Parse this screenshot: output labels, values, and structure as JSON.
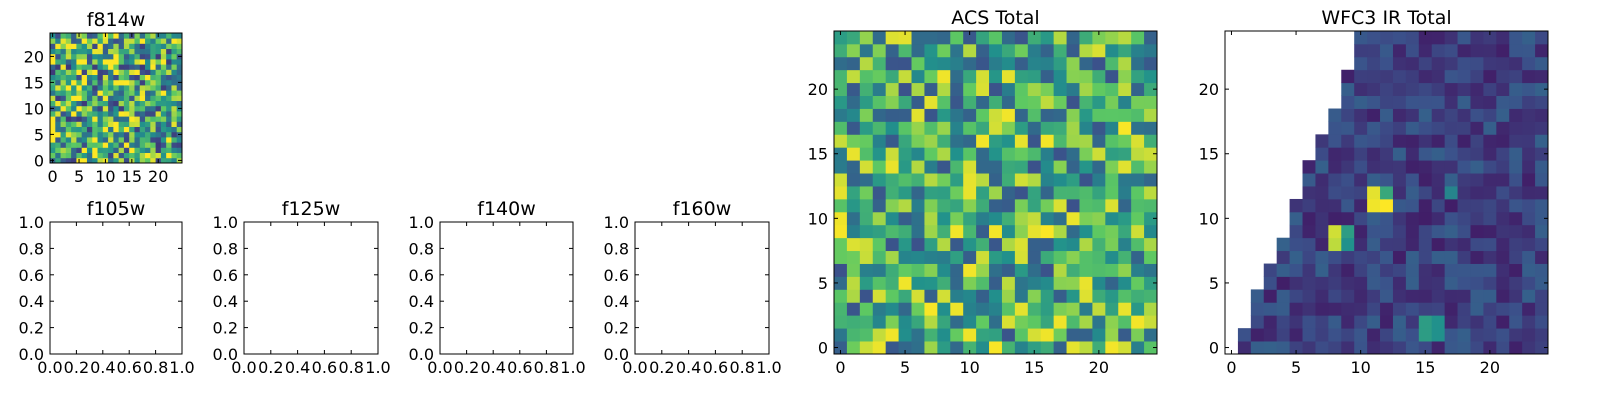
{
  "figure": {
    "background": "#ffffff",
    "colormap": "viridis",
    "colormap_stops": [
      "#440154",
      "#3b528b",
      "#21918c",
      "#5ec962",
      "#fde725"
    ]
  },
  "chart_data": [
    {
      "id": "f814w",
      "type": "heatmap",
      "title": "f814w",
      "xlim": [
        -0.5,
        24.5
      ],
      "ylim": [
        -0.5,
        24.5
      ],
      "xticks": [
        0,
        5,
        10,
        15,
        20
      ],
      "xtick_labels": [
        "0",
        "5",
        "10",
        "15",
        "20"
      ],
      "yticks": [
        0,
        5,
        10,
        15,
        20
      ],
      "ytick_labels": [
        "0",
        "5",
        "10",
        "15",
        "20"
      ],
      "grid": false,
      "nrows": 25,
      "ncols": 25,
      "value_range": [
        0,
        1
      ],
      "mask": "none",
      "seed": 814,
      "base": 0.62,
      "spread": 0.9
    },
    {
      "id": "f105w",
      "type": "empty",
      "title": "f105w",
      "xlim": [
        0,
        1
      ],
      "ylim": [
        0,
        1
      ],
      "xticks": [
        0,
        0.2,
        0.4,
        0.6,
        0.8,
        1.0
      ],
      "xtick_labels": [
        "0.0",
        "0.2",
        "0.4",
        "0.6",
        "0.8",
        "1.0"
      ],
      "yticks": [
        0,
        0.2,
        0.4,
        0.6,
        0.8,
        1.0
      ],
      "ytick_labels": [
        "0.0",
        "0.2",
        "0.4",
        "0.6",
        "0.8",
        "1.0"
      ],
      "grid": false
    },
    {
      "id": "f125w",
      "type": "empty",
      "title": "f125w",
      "xlim": [
        0,
        1
      ],
      "ylim": [
        0,
        1
      ],
      "xticks": [
        0,
        0.2,
        0.4,
        0.6,
        0.8,
        1.0
      ],
      "xtick_labels": [
        "0.0",
        "0.2",
        "0.4",
        "0.6",
        "0.8",
        "1.0"
      ],
      "yticks": [
        0,
        0.2,
        0.4,
        0.6,
        0.8,
        1.0
      ],
      "ytick_labels": [
        "0.0",
        "0.2",
        "0.4",
        "0.6",
        "0.8",
        "1.0"
      ],
      "grid": false
    },
    {
      "id": "f140w",
      "type": "empty",
      "title": "f140w",
      "xlim": [
        0,
        1
      ],
      "ylim": [
        0,
        1
      ],
      "xticks": [
        0,
        0.2,
        0.4,
        0.6,
        0.8,
        1.0
      ],
      "xtick_labels": [
        "0.0",
        "0.2",
        "0.4",
        "0.6",
        "0.8",
        "1.0"
      ],
      "yticks": [
        0,
        0.2,
        0.4,
        0.6,
        0.8,
        1.0
      ],
      "ytick_labels": [
        "0.0",
        "0.2",
        "0.4",
        "0.6",
        "0.8",
        "1.0"
      ],
      "grid": false
    },
    {
      "id": "f160w",
      "type": "empty",
      "title": "f160w",
      "xlim": [
        0,
        1
      ],
      "ylim": [
        0,
        1
      ],
      "xticks": [
        0,
        0.2,
        0.4,
        0.6,
        0.8,
        1.0
      ],
      "xtick_labels": [
        "0.0",
        "0.2",
        "0.4",
        "0.6",
        "0.8",
        "1.0"
      ],
      "yticks": [
        0,
        0.2,
        0.4,
        0.6,
        0.8,
        1.0
      ],
      "ytick_labels": [
        "0.0",
        "0.2",
        "0.4",
        "0.6",
        "0.8",
        "1.0"
      ],
      "grid": false
    },
    {
      "id": "acs_total",
      "type": "heatmap",
      "title": "ACS Total",
      "xlim": [
        -0.5,
        24.5
      ],
      "ylim": [
        -0.5,
        24.5
      ],
      "xticks": [
        0,
        5,
        10,
        15,
        20
      ],
      "xtick_labels": [
        "0",
        "5",
        "10",
        "15",
        "20"
      ],
      "yticks": [
        0,
        5,
        10,
        15,
        20
      ],
      "ytick_labels": [
        "0",
        "5",
        "10",
        "15",
        "20"
      ],
      "grid": false,
      "nrows": 25,
      "ncols": 25,
      "value_range": [
        0,
        1
      ],
      "mask": "none",
      "seed": 1234,
      "base": 0.62,
      "spread": 0.75
    },
    {
      "id": "wfc3_ir_total",
      "type": "heatmap",
      "title": "WFC3 IR Total",
      "xlim": [
        -0.5,
        24.5
      ],
      "ylim": [
        -0.5,
        24.5
      ],
      "xticks": [
        0,
        5,
        10,
        15,
        20
      ],
      "xtick_labels": [
        "0",
        "5",
        "10",
        "15",
        "20"
      ],
      "yticks": [
        0,
        5,
        10,
        15,
        20
      ],
      "ytick_labels": [
        "0",
        "5",
        "10",
        "15",
        "20"
      ],
      "grid": false,
      "nrows": 25,
      "ncols": 25,
      "value_range": [
        0,
        1
      ],
      "mask": "upper-left triangle blank (no data)",
      "mask_row_first_col": [
        1,
        1,
        2,
        2,
        2,
        3,
        3,
        4,
        4,
        5,
        5,
        5,
        6,
        6,
        6,
        7,
        7,
        8,
        8,
        9,
        9,
        9,
        10,
        10,
        10
      ],
      "seed": 160,
      "base": 0.2,
      "spread": 0.22,
      "hot_cells": [
        {
          "row": 12,
          "col": 11,
          "value": 0.96
        },
        {
          "row": 12,
          "col": 12,
          "value": 0.6
        },
        {
          "row": 11,
          "col": 11,
          "value": 0.98
        },
        {
          "row": 11,
          "col": 12,
          "value": 1.0
        },
        {
          "row": 9,
          "col": 8,
          "value": 0.93
        },
        {
          "row": 8,
          "col": 8,
          "value": 0.9
        },
        {
          "row": 9,
          "col": 9,
          "value": 0.55
        },
        {
          "row": 8,
          "col": 9,
          "value": 0.5
        },
        {
          "row": 2,
          "col": 15,
          "value": 0.55
        },
        {
          "row": 2,
          "col": 16,
          "value": 0.5
        },
        {
          "row": 1,
          "col": 15,
          "value": 0.55
        },
        {
          "row": 1,
          "col": 16,
          "value": 0.5
        },
        {
          "row": 12,
          "col": 17,
          "value": 0.45
        }
      ]
    }
  ]
}
